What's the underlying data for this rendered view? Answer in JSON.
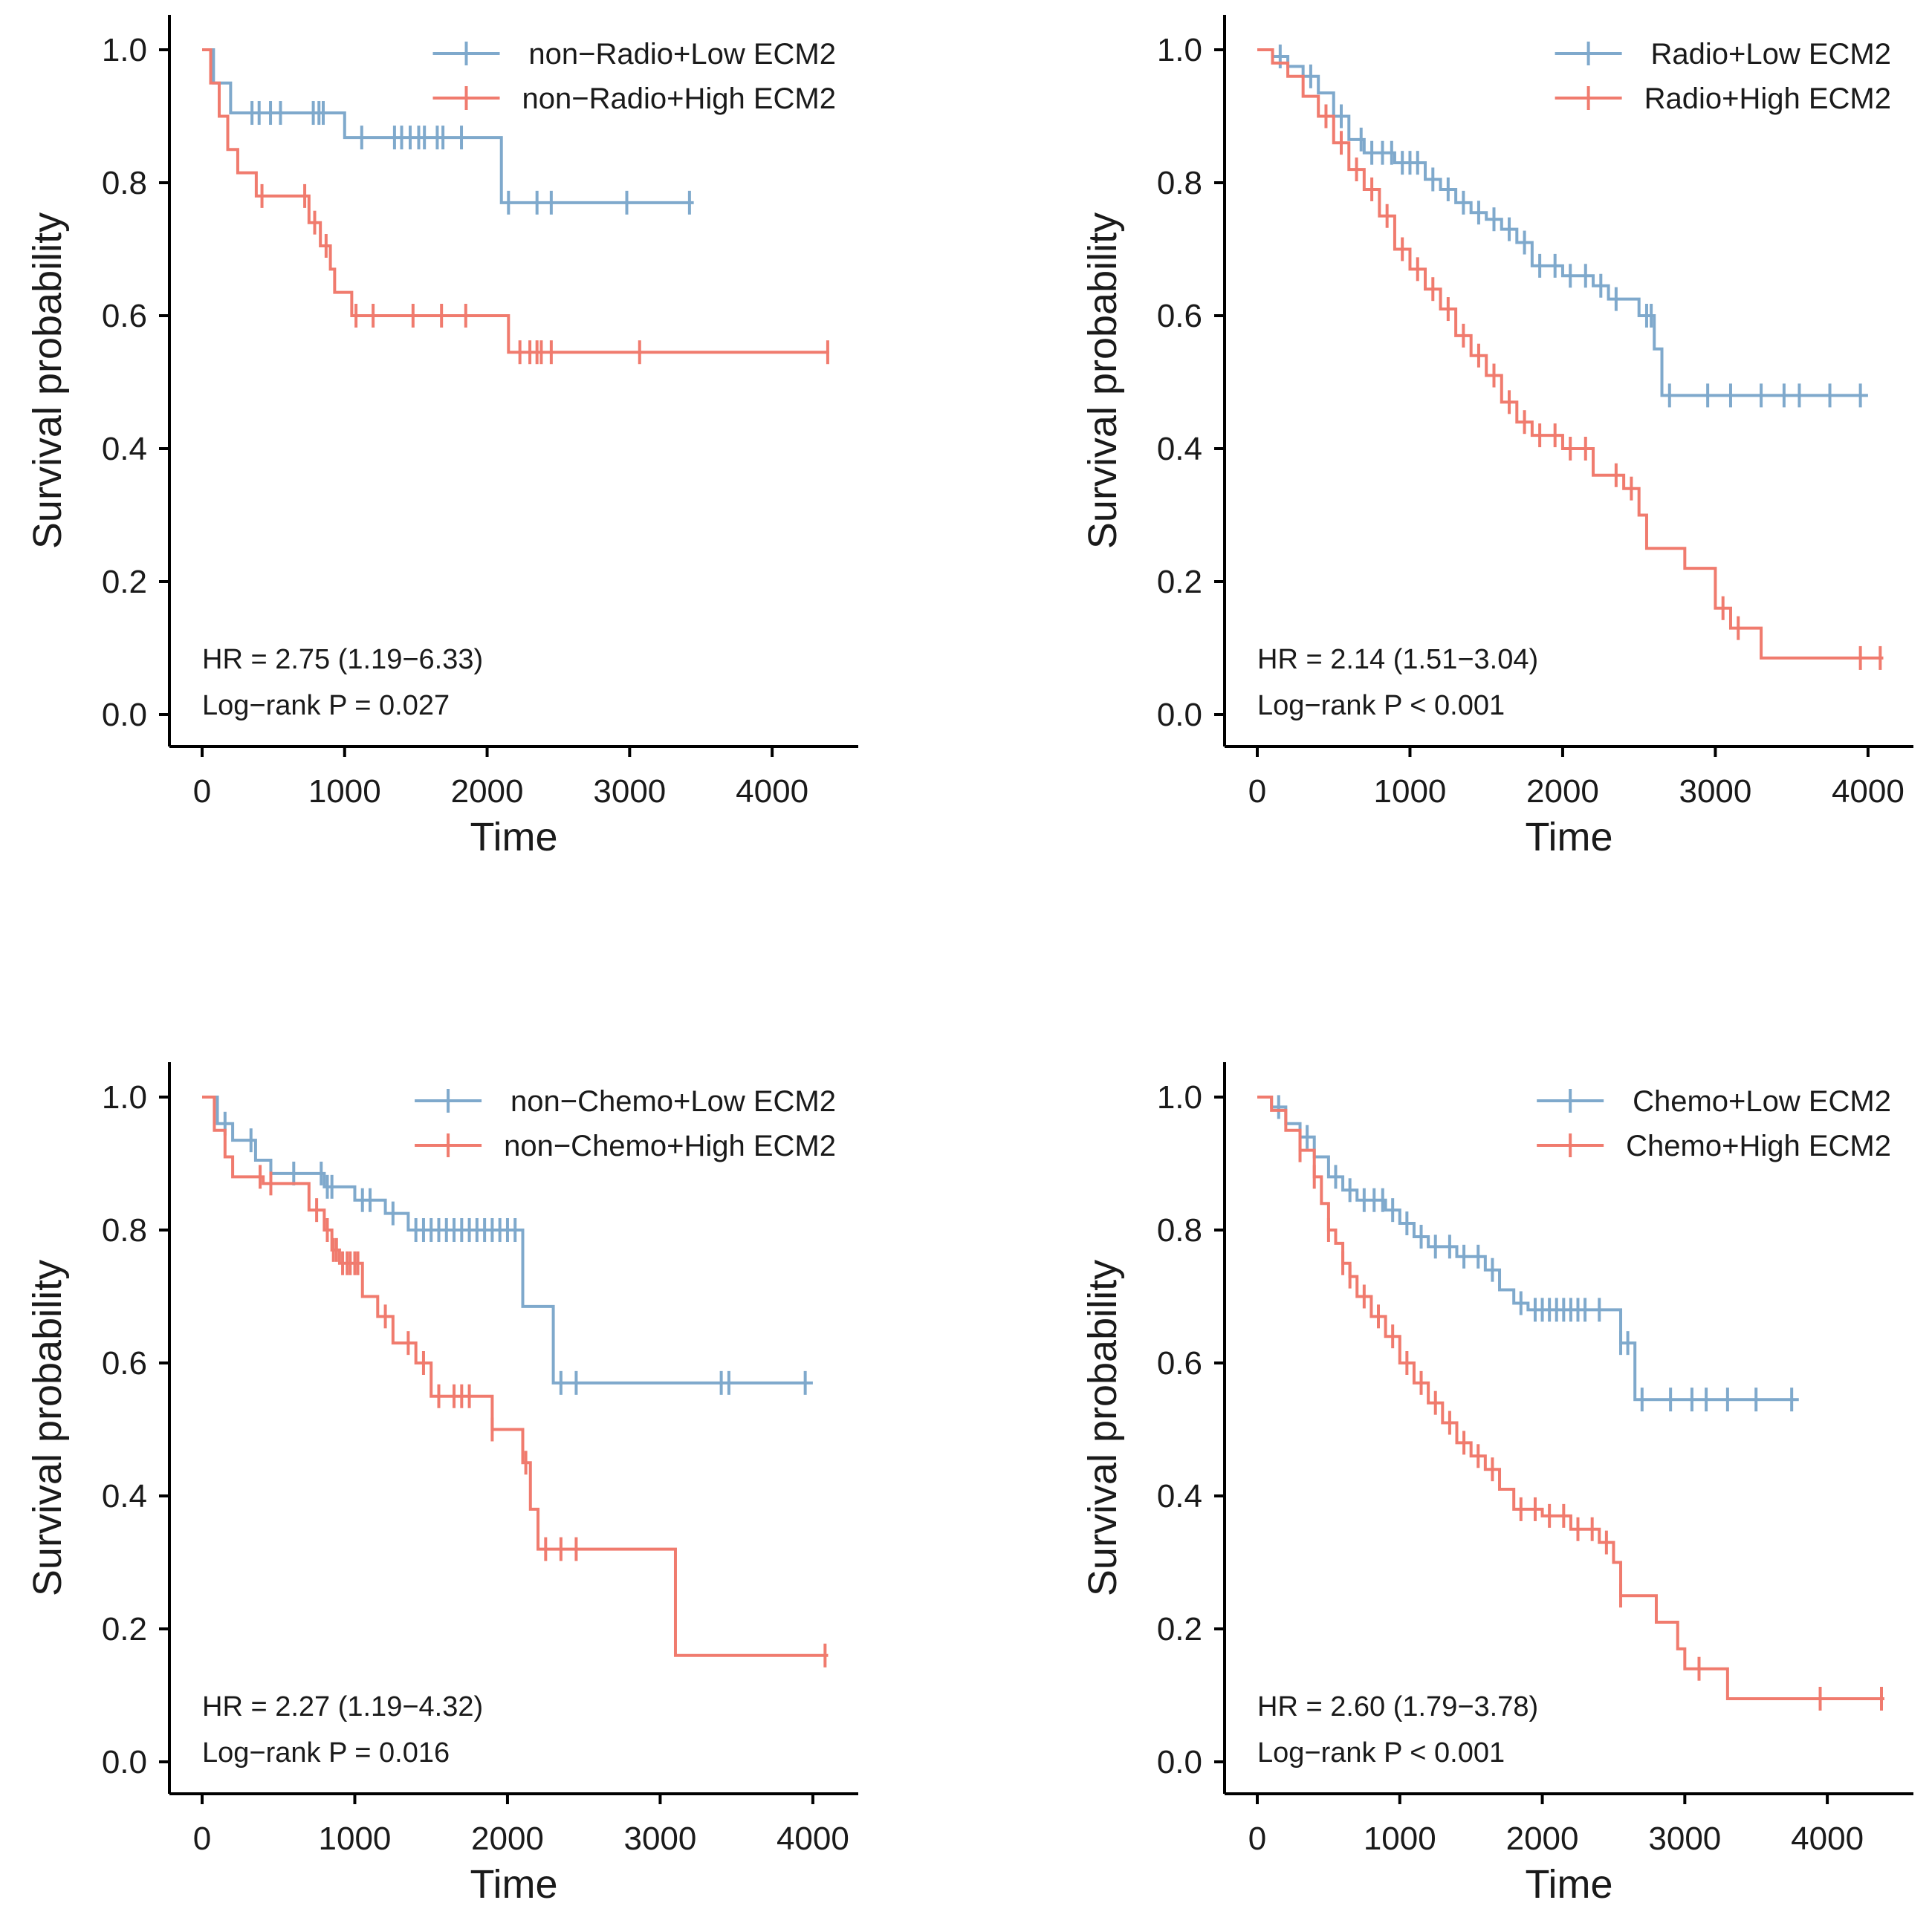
{
  "colors": {
    "low": "#7fa9cc",
    "high": "#f07b6e",
    "axis": "#000000"
  },
  "chart_data": [
    {
      "type": "line",
      "title": "",
      "xlabel": "Time",
      "ylabel": "Survival probability",
      "xlim": [
        0,
        4500
      ],
      "ylim": [
        0,
        1
      ],
      "xticks": [
        "0",
        "1000",
        "2000",
        "3000",
        "4000"
      ],
      "xtick_values": [
        0,
        1000,
        2000,
        3000,
        4000
      ],
      "yticks": [
        "0.0",
        "0.2",
        "0.4",
        "0.6",
        "0.8",
        "1.0"
      ],
      "ytick_values": [
        0,
        0.2,
        0.4,
        0.6,
        0.8,
        1.0
      ],
      "legend_position": "top-right",
      "series": [
        {
          "name": "non−Radio+Low ECM2",
          "color_key": "low",
          "steps": [
            [
              0,
              1.0
            ],
            [
              80,
              0.95
            ],
            [
              200,
              0.905
            ],
            [
              1000,
              0.868
            ],
            [
              2100,
              0.77
            ],
            [
              3450,
              0.77
            ]
          ],
          "censors": [
            350,
            400,
            480,
            550,
            780,
            820,
            850,
            1120,
            1350,
            1400,
            1460,
            1520,
            1560,
            1650,
            1690,
            1820,
            2150,
            2350,
            2450,
            2980,
            3420
          ]
        },
        {
          "name": "non−Radio+High ECM2",
          "color_key": "high",
          "steps": [
            [
              0,
              1.0
            ],
            [
              60,
              0.95
            ],
            [
              120,
              0.9
            ],
            [
              180,
              0.85
            ],
            [
              250,
              0.815
            ],
            [
              380,
              0.78
            ],
            [
              750,
              0.74
            ],
            [
              830,
              0.705
            ],
            [
              900,
              0.67
            ],
            [
              930,
              0.635
            ],
            [
              1050,
              0.6
            ],
            [
              2150,
              0.545
            ],
            [
              4400,
              0.545
            ]
          ],
          "censors": [
            420,
            720,
            790,
            870,
            1080,
            1200,
            1480,
            1680,
            1850,
            2230,
            2300,
            2350,
            2380,
            2450,
            3070,
            4390
          ]
        }
      ],
      "annotations": [
        "HR = 2.75 (1.19−6.33)",
        "Log−rank P = 0.027"
      ]
    },
    {
      "type": "line",
      "title": "",
      "xlabel": "Time",
      "ylabel": "Survival probability",
      "xlim": [
        0,
        4200
      ],
      "ylim": [
        0,
        1
      ],
      "xticks": [
        "0",
        "1000",
        "2000",
        "3000",
        "4000"
      ],
      "xtick_values": [
        0,
        1000,
        2000,
        3000,
        4000
      ],
      "yticks": [
        "0.0",
        "0.2",
        "0.4",
        "0.6",
        "0.8",
        "1.0"
      ],
      "ytick_values": [
        0,
        0.2,
        0.4,
        0.6,
        0.8,
        1.0
      ],
      "legend_position": "top-right",
      "series": [
        {
          "name": "Radio+Low ECM2",
          "color_key": "low",
          "steps": [
            [
              0,
              1.0
            ],
            [
              100,
              0.99
            ],
            [
              200,
              0.975
            ],
            [
              300,
              0.96
            ],
            [
              400,
              0.935
            ],
            [
              500,
              0.9
            ],
            [
              600,
              0.865
            ],
            [
              700,
              0.845
            ],
            [
              900,
              0.83
            ],
            [
              1100,
              0.805
            ],
            [
              1200,
              0.79
            ],
            [
              1300,
              0.77
            ],
            [
              1400,
              0.755
            ],
            [
              1500,
              0.745
            ],
            [
              1600,
              0.73
            ],
            [
              1700,
              0.71
            ],
            [
              1800,
              0.675
            ],
            [
              2000,
              0.66
            ],
            [
              2200,
              0.645
            ],
            [
              2300,
              0.625
            ],
            [
              2500,
              0.6
            ],
            [
              2600,
              0.55
            ],
            [
              2650,
              0.48
            ],
            [
              4000,
              0.48
            ]
          ],
          "censors": [
            150,
            350,
            550,
            680,
            750,
            820,
            880,
            950,
            1000,
            1050,
            1150,
            1250,
            1350,
            1450,
            1550,
            1650,
            1750,
            1850,
            1950,
            2050,
            2150,
            2250,
            2350,
            2550,
            2580,
            2700,
            2950,
            3100,
            3300,
            3450,
            3550,
            3750,
            3950
          ]
        },
        {
          "name": "Radio+High ECM2",
          "color_key": "high",
          "steps": [
            [
              0,
              1.0
            ],
            [
              100,
              0.98
            ],
            [
              200,
              0.96
            ],
            [
              300,
              0.93
            ],
            [
              400,
              0.9
            ],
            [
              500,
              0.86
            ],
            [
              600,
              0.82
            ],
            [
              700,
              0.79
            ],
            [
              800,
              0.75
            ],
            [
              900,
              0.7
            ],
            [
              1000,
              0.67
            ],
            [
              1100,
              0.64
            ],
            [
              1200,
              0.61
            ],
            [
              1300,
              0.57
            ],
            [
              1400,
              0.54
            ],
            [
              1500,
              0.51
            ],
            [
              1600,
              0.47
            ],
            [
              1700,
              0.44
            ],
            [
              1800,
              0.42
            ],
            [
              2000,
              0.4
            ],
            [
              2200,
              0.36
            ],
            [
              2400,
              0.34
            ],
            [
              2500,
              0.3
            ],
            [
              2550,
              0.25
            ],
            [
              2800,
              0.22
            ],
            [
              3000,
              0.16
            ],
            [
              3100,
              0.13
            ],
            [
              3300,
              0.085
            ],
            [
              4100,
              0.085
            ]
          ],
          "censors": [
            450,
            550,
            650,
            750,
            850,
            950,
            1050,
            1150,
            1250,
            1350,
            1450,
            1550,
            1650,
            1750,
            1850,
            1950,
            2050,
            2150,
            2350,
            2450,
            3050,
            3150,
            3950,
            4080
          ]
        }
      ],
      "annotations": [
        "HR = 2.14 (1.51−3.04)",
        "Log−rank P < 0.001"
      ]
    },
    {
      "type": "line",
      "title": "",
      "xlabel": "Time",
      "ylabel": "Survival probability",
      "xlim": [
        0,
        4200
      ],
      "ylim": [
        0,
        1
      ],
      "xticks": [
        "0",
        "1000",
        "2000",
        "3000",
        "4000"
      ],
      "xtick_values": [
        0,
        1000,
        2000,
        3000,
        4000
      ],
      "yticks": [
        "0.0",
        "0.2",
        "0.4",
        "0.6",
        "0.8",
        "1.0"
      ],
      "ytick_values": [
        0,
        0.2,
        0.4,
        0.6,
        0.8,
        1.0
      ],
      "legend_position": "top-right",
      "series": [
        {
          "name": "non−Chemo+Low ECM2",
          "color_key": "low",
          "steps": [
            [
              0,
              1.0
            ],
            [
              100,
              0.96
            ],
            [
              200,
              0.935
            ],
            [
              350,
              0.905
            ],
            [
              450,
              0.885
            ],
            [
              800,
              0.865
            ],
            [
              1000,
              0.845
            ],
            [
              1200,
              0.825
            ],
            [
              1350,
              0.8
            ],
            [
              2100,
              0.685
            ],
            [
              2300,
              0.57
            ],
            [
              4000,
              0.57
            ]
          ],
          "censors": [
            150,
            320,
            600,
            780,
            820,
            850,
            1050,
            1100,
            1250,
            1400,
            1450,
            1500,
            1550,
            1600,
            1650,
            1700,
            1750,
            1800,
            1850,
            1900,
            1950,
            2000,
            2050,
            2350,
            2450,
            3400,
            3450,
            3950
          ]
        },
        {
          "name": "non−Chemo+High ECM2",
          "color_key": "high",
          "steps": [
            [
              0,
              1.0
            ],
            [
              80,
              0.95
            ],
            [
              150,
              0.91
            ],
            [
              200,
              0.88
            ],
            [
              400,
              0.87
            ],
            [
              700,
              0.83
            ],
            [
              800,
              0.8
            ],
            [
              850,
              0.77
            ],
            [
              900,
              0.75
            ],
            [
              1050,
              0.7
            ],
            [
              1150,
              0.67
            ],
            [
              1250,
              0.63
            ],
            [
              1400,
              0.6
            ],
            [
              1500,
              0.55
            ],
            [
              1900,
              0.5
            ],
            [
              2100,
              0.45
            ],
            [
              2150,
              0.38
            ],
            [
              2200,
              0.32
            ],
            [
              3100,
              0.16
            ],
            [
              4100,
              0.16
            ]
          ],
          "censors": [
            380,
            450,
            750,
            820,
            860,
            880,
            920,
            950,
            970,
            1000,
            1020,
            1200,
            1350,
            1450,
            1550,
            1650,
            1700,
            1750,
            1900,
            2120,
            2250,
            2350,
            2450,
            4080
          ]
        }
      ],
      "annotations": [
        "HR = 2.27 (1.19−4.32)",
        "Log−rank P = 0.016"
      ]
    },
    {
      "type": "line",
      "title": "",
      "xlabel": "Time",
      "ylabel": "Survival probability",
      "xlim": [
        0,
        4500
      ],
      "ylim": [
        0,
        1
      ],
      "xticks": [
        "0",
        "1000",
        "2000",
        "3000",
        "4000"
      ],
      "xtick_values": [
        0,
        1000,
        2000,
        3000,
        4000
      ],
      "yticks": [
        "0.0",
        "0.2",
        "0.4",
        "0.6",
        "0.8",
        "1.0"
      ],
      "ytick_values": [
        0,
        0.2,
        0.4,
        0.6,
        0.8,
        1.0
      ],
      "legend_position": "top-right",
      "series": [
        {
          "name": "Chemo+Low ECM2",
          "color_key": "low",
          "steps": [
            [
              0,
              1.0
            ],
            [
              100,
              0.985
            ],
            [
              200,
              0.96
            ],
            [
              300,
              0.94
            ],
            [
              400,
              0.91
            ],
            [
              500,
              0.88
            ],
            [
              600,
              0.86
            ],
            [
              700,
              0.845
            ],
            [
              900,
              0.83
            ],
            [
              1000,
              0.81
            ],
            [
              1100,
              0.79
            ],
            [
              1200,
              0.775
            ],
            [
              1400,
              0.76
            ],
            [
              1600,
              0.74
            ],
            [
              1700,
              0.71
            ],
            [
              1800,
              0.69
            ],
            [
              1900,
              0.68
            ],
            [
              2550,
              0.63
            ],
            [
              2650,
              0.545
            ],
            [
              3800,
              0.545
            ]
          ],
          "censors": [
            150,
            350,
            550,
            650,
            750,
            820,
            880,
            950,
            1050,
            1150,
            1250,
            1350,
            1450,
            1550,
            1650,
            1850,
            1950,
            2000,
            2050,
            2100,
            2150,
            2200,
            2250,
            2300,
            2400,
            2550,
            2600,
            2700,
            2900,
            3050,
            3150,
            3300,
            3500,
            3750
          ]
        },
        {
          "name": "Chemo+High ECM2",
          "color_key": "high",
          "steps": [
            [
              0,
              1.0
            ],
            [
              100,
              0.98
            ],
            [
              200,
              0.95
            ],
            [
              300,
              0.92
            ],
            [
              400,
              0.88
            ],
            [
              450,
              0.84
            ],
            [
              500,
              0.8
            ],
            [
              550,
              0.78
            ],
            [
              600,
              0.75
            ],
            [
              650,
              0.73
            ],
            [
              700,
              0.7
            ],
            [
              800,
              0.67
            ],
            [
              900,
              0.64
            ],
            [
              1000,
              0.6
            ],
            [
              1100,
              0.57
            ],
            [
              1200,
              0.54
            ],
            [
              1300,
              0.51
            ],
            [
              1400,
              0.48
            ],
            [
              1500,
              0.46
            ],
            [
              1600,
              0.44
            ],
            [
              1700,
              0.41
            ],
            [
              1800,
              0.38
            ],
            [
              2000,
              0.37
            ],
            [
              2200,
              0.35
            ],
            [
              2400,
              0.33
            ],
            [
              2500,
              0.3
            ],
            [
              2550,
              0.25
            ],
            [
              2800,
              0.21
            ],
            [
              2950,
              0.17
            ],
            [
              3000,
              0.14
            ],
            [
              3300,
              0.095
            ],
            [
              4400,
              0.095
            ]
          ],
          "censors": [
            300,
            400,
            500,
            600,
            650,
            750,
            850,
            950,
            1050,
            1150,
            1250,
            1350,
            1450,
            1550,
            1650,
            1850,
            1950,
            2050,
            2150,
            2250,
            2350,
            2450,
            2550,
            3100,
            3950,
            4380
          ]
        }
      ],
      "annotations": [
        "HR = 2.60 (1.79−3.78)",
        "Log−rank P < 0.001"
      ]
    }
  ]
}
